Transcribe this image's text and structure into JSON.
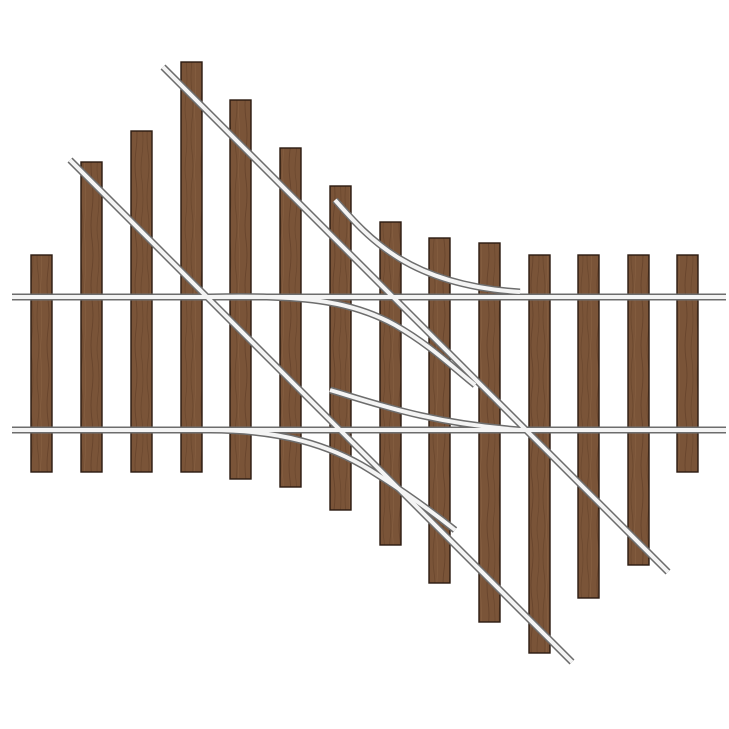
{
  "diagram": {
    "subject": "railway-crossing-with-turnouts",
    "ties": {
      "count": 14,
      "wood_color": "#7a5438",
      "grain_color": "#5f3e27",
      "edge_color": "#2a1a10"
    },
    "rails": {
      "count": 6,
      "steel_color": "#f4f4f4",
      "edge_color": "#6d6d6d"
    },
    "background_color": "#ffffff"
  }
}
